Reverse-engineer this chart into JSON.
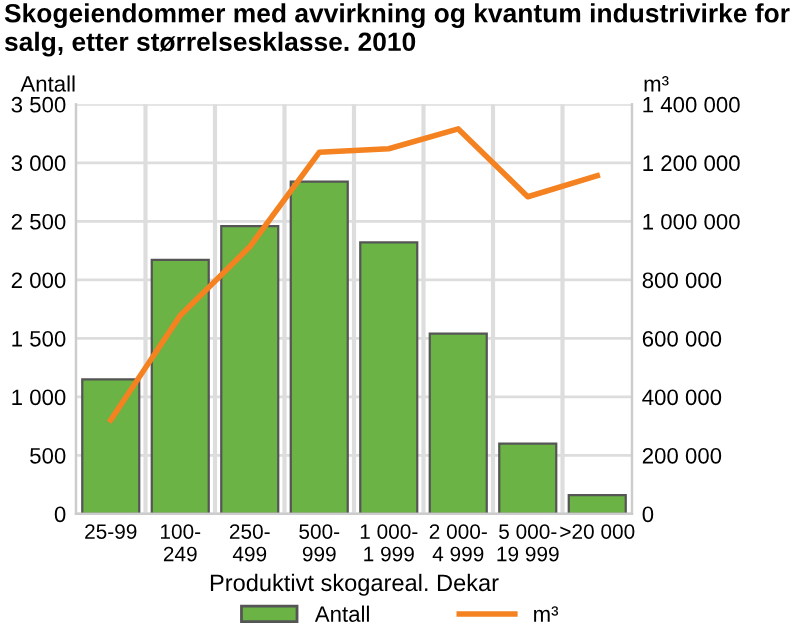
{
  "chart_data": {
    "type": "bar",
    "title": "Skogeiendommer med avvirkning og kvantum industrivirke for salg, etter størrelsesklasse. 2010",
    "categories": [
      "25-99",
      "100-\n249",
      "250-\n499",
      "500-\n999",
      "1 000-\n1 999",
      "2 000-\n4 999",
      "5 000-\n19 999",
      ">20 000"
    ],
    "series": [
      {
        "name": "Antall",
        "color": "#6ab344",
        "values": [
          1150,
          2170,
          2460,
          2840,
          2320,
          1540,
          600,
          160
        ]
      },
      {
        "name": "m³",
        "type": "line",
        "axis": "y2",
        "color": "#f58220",
        "values": [
          321000,
          678000,
          913000,
          1236000,
          1248000,
          1316000,
          1084000,
          1156000
        ]
      }
    ],
    "xlabel": "Produktivt skogareal. Dekar",
    "ylabel": "Antall",
    "y2label": "m³",
    "ylim": [
      0,
      3500
    ],
    "yticks": [
      {
        "value": 0,
        "label": "0"
      },
      {
        "value": 500,
        "label": "500"
      },
      {
        "value": 1000,
        "label": "1 000"
      },
      {
        "value": 1500,
        "label": "1 500"
      },
      {
        "value": 2000,
        "label": "2 000"
      },
      {
        "value": 2500,
        "label": "2 500"
      },
      {
        "value": 3000,
        "label": "3 000"
      },
      {
        "value": 3500,
        "label": "3 500"
      }
    ],
    "y2lim": [
      0,
      1400000
    ],
    "y2ticks": [
      {
        "value": 0,
        "label": "0"
      },
      {
        "value": 200000,
        "label": "200 000"
      },
      {
        "value": 400000,
        "label": "400 000"
      },
      {
        "value": 600000,
        "label": "600 000"
      },
      {
        "value": 800000,
        "label": "800 000"
      },
      {
        "value": 1000000,
        "label": "1 000 000"
      },
      {
        "value": 1200000,
        "label": "1 200 000"
      },
      {
        "value": 1400000,
        "label": "1 400 000"
      }
    ],
    "grid": true,
    "legend": "bottom",
    "marker": "none"
  }
}
